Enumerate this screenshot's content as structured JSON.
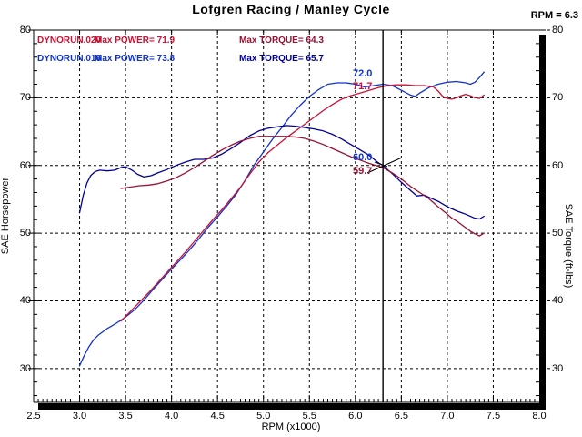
{
  "title": "Lofgren Racing / Manley Cycle",
  "cursor": {
    "rpm": 6.3,
    "readout": "RPM = 6.3"
  },
  "colors": {
    "power_red": "#cc1133",
    "power_blue": "#1133cc",
    "torque_red": "#991133",
    "torque_blue": "#000099",
    "grid": "#000000",
    "cursor_line": "#000000",
    "frame": "#000000"
  },
  "legend": {
    "runs": [
      {
        "file": "DYNORUN.020",
        "power_label": "Max POWER= 71.9",
        "torque_label": "Max TORQUE= 64.3"
      },
      {
        "file": "DYNORUN.016",
        "power_label": "Max POWER= 73.8",
        "torque_label": "Max TORQUE= 65.7"
      }
    ]
  },
  "annotations": {
    "power_blue_at_cursor": "72.0",
    "power_red_at_cursor": "71.7",
    "torque_blue_at_cursor": "60.0",
    "torque_red_at_cursor": "59.7"
  },
  "axes": {
    "x": {
      "label": "RPM (x1000)",
      "min": 2.5,
      "max": 8.0,
      "tick_values": [
        2.5,
        3.0,
        3.5,
        4.0,
        4.5,
        5.0,
        5.5,
        6.0,
        6.5,
        7.0,
        7.5,
        8.0
      ],
      "tick_labels": [
        "2.5",
        "3.0",
        "3.5",
        "4.0",
        "4.5",
        "5.0",
        "5.5",
        "6.0",
        "6.5",
        "7.0",
        "7.5",
        "8.0"
      ],
      "grid_values": [
        3.0,
        3.5,
        4.0,
        4.5,
        5.0,
        5.5,
        6.0,
        6.5,
        7.0,
        7.5
      ],
      "minor_step": 0.05
    },
    "y_left": {
      "label": "SAE Horsepower",
      "min": 25,
      "max": 80,
      "tick_values": [
        30,
        40,
        50,
        60,
        70,
        80
      ],
      "tick_labels": [
        "30",
        "40",
        "50",
        "60",
        "70",
        "80"
      ],
      "grid_values": [
        30,
        40,
        50,
        60,
        70
      ],
      "minor_step": 2
    },
    "y_right": {
      "label": "SAE Torque (ft-lbs)",
      "tick_values": [
        30,
        40,
        50,
        60,
        70,
        80
      ],
      "tick_labels": [
        "30",
        "40",
        "50",
        "60",
        "70",
        "80"
      ],
      "minor_step": 2
    }
  },
  "chart_data": {
    "type": "line",
    "title": "Lofgren Racing / Manley Cycle",
    "xlabel": "RPM (x1000)",
    "ylabel_left": "SAE Horsepower",
    "ylabel_right": "SAE Torque (ft-lbs)",
    "xlim": [
      2.5,
      8.0
    ],
    "ylim": [
      25,
      80
    ],
    "grid": true,
    "cursor_rpm": 6.3,
    "series": [
      {
        "name": "DYNORUN.016 power",
        "unit": "hp",
        "color_key": "power_blue",
        "max": 73.8,
        "points": [
          [
            3.0,
            30.4
          ],
          [
            3.05,
            31.9
          ],
          [
            3.1,
            33.2
          ],
          [
            3.15,
            34.2
          ],
          [
            3.2,
            34.9
          ],
          [
            3.3,
            35.9
          ],
          [
            3.4,
            36.7
          ],
          [
            3.5,
            37.6
          ],
          [
            3.6,
            38.7
          ],
          [
            3.7,
            40.1
          ],
          [
            3.8,
            41.7
          ],
          [
            3.9,
            43.2
          ],
          [
            4.0,
            44.7
          ],
          [
            4.1,
            46.1
          ],
          [
            4.2,
            47.6
          ],
          [
            4.3,
            49.2
          ],
          [
            4.4,
            50.9
          ],
          [
            4.5,
            52.4
          ],
          [
            4.6,
            54.0
          ],
          [
            4.7,
            55.7
          ],
          [
            4.8,
            57.8
          ],
          [
            4.9,
            60.1
          ],
          [
            5.0,
            62.0
          ],
          [
            5.1,
            63.9
          ],
          [
            5.2,
            65.6
          ],
          [
            5.3,
            67.4
          ],
          [
            5.4,
            68.9
          ],
          [
            5.5,
            70.2
          ],
          [
            5.6,
            71.2
          ],
          [
            5.7,
            72.0
          ],
          [
            5.8,
            72.2
          ],
          [
            5.9,
            72.2
          ],
          [
            6.0,
            72.0
          ],
          [
            6.05,
            71.8
          ],
          [
            6.1,
            71.6
          ],
          [
            6.2,
            71.8
          ],
          [
            6.3,
            72.0
          ],
          [
            6.4,
            71.8
          ],
          [
            6.5,
            71.1
          ],
          [
            6.6,
            70.4
          ],
          [
            6.65,
            70.2
          ],
          [
            6.7,
            70.7
          ],
          [
            6.8,
            71.5
          ],
          [
            6.9,
            72.0
          ],
          [
            7.0,
            72.3
          ],
          [
            7.1,
            72.4
          ],
          [
            7.2,
            72.2
          ],
          [
            7.25,
            72.0
          ],
          [
            7.3,
            72.3
          ],
          [
            7.35,
            73.0
          ],
          [
            7.4,
            73.8
          ]
        ]
      },
      {
        "name": "DYNORUN.020 power",
        "unit": "hp",
        "color_key": "power_red",
        "max": 71.9,
        "points": [
          [
            3.45,
            37.0
          ],
          [
            3.55,
            38.4
          ],
          [
            3.65,
            39.8
          ],
          [
            3.75,
            41.2
          ],
          [
            3.85,
            42.7
          ],
          [
            3.95,
            44.2
          ],
          [
            4.05,
            45.7
          ],
          [
            4.15,
            47.2
          ],
          [
            4.25,
            48.8
          ],
          [
            4.35,
            50.4
          ],
          [
            4.45,
            52.0
          ],
          [
            4.55,
            53.5
          ],
          [
            4.65,
            55.1
          ],
          [
            4.75,
            56.8
          ],
          [
            4.85,
            58.7
          ],
          [
            4.95,
            60.5
          ],
          [
            5.05,
            61.9
          ],
          [
            5.15,
            63.0
          ],
          [
            5.25,
            64.1
          ],
          [
            5.35,
            65.1
          ],
          [
            5.45,
            66.1
          ],
          [
            5.55,
            67.1
          ],
          [
            5.65,
            68.1
          ],
          [
            5.75,
            69.0
          ],
          [
            5.85,
            69.8
          ],
          [
            5.95,
            70.3
          ],
          [
            6.05,
            70.7
          ],
          [
            6.15,
            71.1
          ],
          [
            6.25,
            71.5
          ],
          [
            6.35,
            71.8
          ],
          [
            6.45,
            71.9
          ],
          [
            6.55,
            71.9
          ],
          [
            6.65,
            71.8
          ],
          [
            6.75,
            71.8
          ],
          [
            6.85,
            71.6
          ],
          [
            6.9,
            71.0
          ],
          [
            6.95,
            70.2
          ],
          [
            7.0,
            69.9
          ],
          [
            7.05,
            69.8
          ],
          [
            7.1,
            70.0
          ],
          [
            7.15,
            70.3
          ],
          [
            7.2,
            70.5
          ],
          [
            7.25,
            70.3
          ],
          [
            7.3,
            70.0
          ],
          [
            7.35,
            69.9
          ],
          [
            7.4,
            70.4
          ]
        ]
      },
      {
        "name": "DYNORUN.016 torque",
        "unit": "ft-lbs",
        "color_key": "torque_blue",
        "max": 65.7,
        "points": [
          [
            3.0,
            53.0
          ],
          [
            3.04,
            55.6
          ],
          [
            3.08,
            57.4
          ],
          [
            3.12,
            58.5
          ],
          [
            3.17,
            59.1
          ],
          [
            3.22,
            59.3
          ],
          [
            3.3,
            59.2
          ],
          [
            3.38,
            59.3
          ],
          [
            3.45,
            59.7
          ],
          [
            3.5,
            59.8
          ],
          [
            3.57,
            59.3
          ],
          [
            3.63,
            58.7
          ],
          [
            3.7,
            58.3
          ],
          [
            3.78,
            58.5
          ],
          [
            3.85,
            58.9
          ],
          [
            3.95,
            59.4
          ],
          [
            4.05,
            60.0
          ],
          [
            4.15,
            60.5
          ],
          [
            4.25,
            60.9
          ],
          [
            4.35,
            60.9
          ],
          [
            4.45,
            61.1
          ],
          [
            4.55,
            61.7
          ],
          [
            4.65,
            62.5
          ],
          [
            4.75,
            63.4
          ],
          [
            4.85,
            64.4
          ],
          [
            4.95,
            65.1
          ],
          [
            5.05,
            65.5
          ],
          [
            5.15,
            65.7
          ],
          [
            5.25,
            65.9
          ],
          [
            5.35,
            65.8
          ],
          [
            5.45,
            65.6
          ],
          [
            5.55,
            65.4
          ],
          [
            5.65,
            65.1
          ],
          [
            5.75,
            64.6
          ],
          [
            5.85,
            63.9
          ],
          [
            5.95,
            63.1
          ],
          [
            6.05,
            62.3
          ],
          [
            6.15,
            61.5
          ],
          [
            6.25,
            60.4
          ],
          [
            6.3,
            60.0
          ],
          [
            6.4,
            58.8
          ],
          [
            6.5,
            57.5
          ],
          [
            6.6,
            56.3
          ],
          [
            6.67,
            55.5
          ],
          [
            6.75,
            55.6
          ],
          [
            6.8,
            55.3
          ],
          [
            6.9,
            54.7
          ],
          [
            7.0,
            53.9
          ],
          [
            7.1,
            53.3
          ],
          [
            7.2,
            52.8
          ],
          [
            7.3,
            52.2
          ],
          [
            7.35,
            52.1
          ],
          [
            7.4,
            52.5
          ]
        ]
      },
      {
        "name": "DYNORUN.020 torque",
        "unit": "ft-lbs",
        "color_key": "torque_red",
        "max": 64.3,
        "points": [
          [
            3.45,
            56.6
          ],
          [
            3.55,
            56.8
          ],
          [
            3.65,
            57.0
          ],
          [
            3.75,
            57.1
          ],
          [
            3.85,
            57.3
          ],
          [
            3.95,
            57.7
          ],
          [
            4.05,
            58.2
          ],
          [
            4.15,
            58.9
          ],
          [
            4.25,
            59.7
          ],
          [
            4.35,
            60.6
          ],
          [
            4.45,
            61.5
          ],
          [
            4.55,
            62.3
          ],
          [
            4.65,
            63.0
          ],
          [
            4.75,
            63.6
          ],
          [
            4.85,
            64.0
          ],
          [
            4.95,
            64.3
          ],
          [
            5.05,
            64.3
          ],
          [
            5.15,
            64.3
          ],
          [
            5.25,
            64.3
          ],
          [
            5.35,
            64.2
          ],
          [
            5.45,
            64.0
          ],
          [
            5.55,
            63.6
          ],
          [
            5.65,
            63.1
          ],
          [
            5.75,
            62.5
          ],
          [
            5.85,
            61.9
          ],
          [
            5.95,
            61.3
          ],
          [
            6.05,
            60.8
          ],
          [
            6.15,
            60.3
          ],
          [
            6.25,
            59.9
          ],
          [
            6.3,
            59.7
          ],
          [
            6.4,
            58.9
          ],
          [
            6.5,
            58.0
          ],
          [
            6.6,
            56.9
          ],
          [
            6.7,
            56.0
          ],
          [
            6.8,
            55.1
          ],
          [
            6.9,
            53.9
          ],
          [
            7.0,
            52.8
          ],
          [
            7.05,
            52.2
          ],
          [
            7.1,
            51.8
          ],
          [
            7.15,
            51.3
          ],
          [
            7.2,
            50.8
          ],
          [
            7.25,
            50.3
          ],
          [
            7.3,
            49.9
          ],
          [
            7.35,
            49.6
          ],
          [
            7.4,
            50.0
          ]
        ]
      }
    ]
  }
}
